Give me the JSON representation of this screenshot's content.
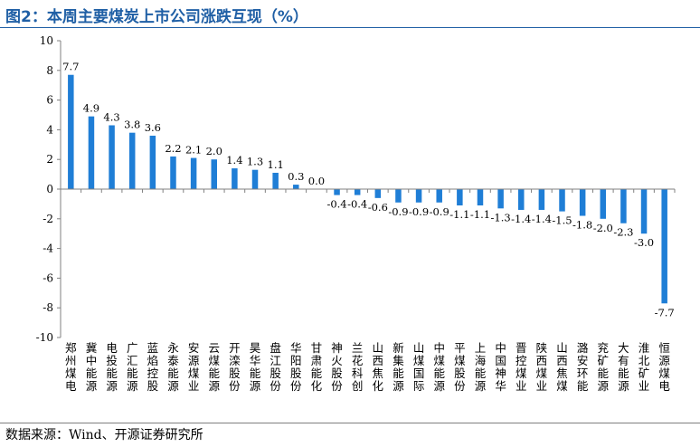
{
  "header": {
    "title": "图2：本周主要煤炭上市公司涨跌互现（%）"
  },
  "footer": {
    "source": "数据来源：Wind、开源证券研究所"
  },
  "colors": {
    "bar": "#1f7ed6",
    "title": "#1f5fa5"
  },
  "chart_data": {
    "type": "bar",
    "title": "本周主要煤炭上市公司涨跌互现（%）",
    "xlabel": "",
    "ylabel": "",
    "ylim": [
      -10,
      10
    ],
    "yticks": [
      "10",
      "8",
      "6",
      "4",
      "2",
      "0",
      "-2",
      "-4",
      "-6",
      "-8",
      "-10"
    ],
    "categories": [
      "郑州煤电",
      "冀中能源",
      "电投能源",
      "广汇能源",
      "蓝焰控股",
      "永泰能源",
      "安源煤业",
      "云煤能源",
      "开滦股份",
      "昊华能源",
      "盘江股份",
      "华阳股份",
      "甘肃能化",
      "神火股份",
      "兰花科创",
      "山西焦化",
      "新集能源",
      "山煤国际",
      "中煤能源",
      "平煤股份",
      "上海能源",
      "中国神华",
      "晋控煤业",
      "陕西煤业",
      "山西焦煤",
      "潞安环能",
      "兖矿能源",
      "大有能源",
      "淮北矿业",
      "恒源煤电"
    ],
    "values": [
      7.7,
      4.9,
      4.3,
      3.8,
      3.6,
      2.2,
      2.1,
      2.0,
      1.4,
      1.3,
      1.1,
      0.3,
      0.0,
      -0.4,
      -0.4,
      -0.6,
      -0.9,
      -0.9,
      -0.9,
      -1.1,
      -1.1,
      -1.3,
      -1.4,
      -1.4,
      -1.5,
      -1.8,
      -2.0,
      -2.3,
      -3.0,
      -7.7
    ],
    "labels": [
      "7.7",
      "4.9",
      "4.3",
      "3.8",
      "3.6",
      "2.2",
      "2.1",
      "2.0",
      "1.4",
      "1.3",
      "1.1",
      "0.3",
      "0.0",
      "-0.4",
      "-0.4",
      "-0.6",
      "-0.9",
      "-0.9",
      "-0.9",
      "-1.1",
      "-1.1",
      "-1.3",
      "-1.4",
      "-1.4",
      "-1.5",
      "-1.8",
      "-2.0",
      "-2.3",
      "-3.0",
      "-7.7"
    ]
  }
}
